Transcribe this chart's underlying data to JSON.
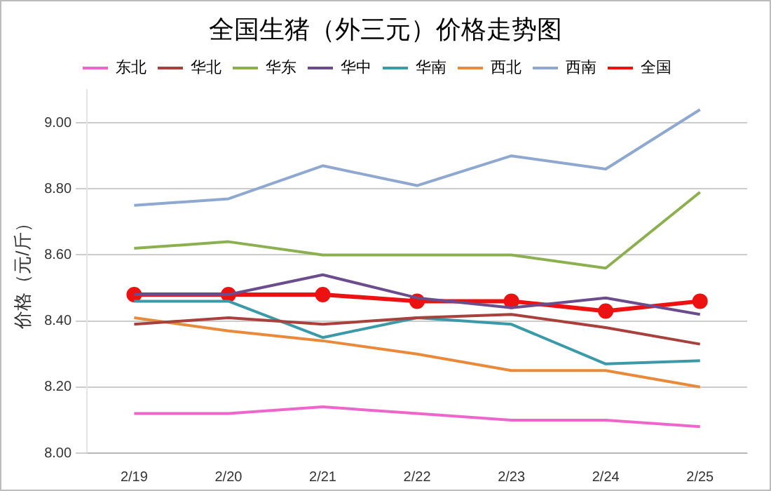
{
  "chart_data": {
    "type": "line",
    "title": "全国生猪（外三元）价格走势图",
    "ylabel": "价格（元/斤）",
    "categories": [
      "2/19",
      "2/20",
      "2/21",
      "2/22",
      "2/23",
      "2/24",
      "2/25"
    ],
    "series": [
      {
        "name": "东北",
        "color": "#ee66cc",
        "values": [
          8.12,
          8.12,
          8.14,
          8.12,
          8.1,
          8.1,
          8.08
        ]
      },
      {
        "name": "华北",
        "color": "#a8403c",
        "values": [
          8.39,
          8.41,
          8.39,
          8.41,
          8.42,
          8.38,
          8.33
        ]
      },
      {
        "name": "华东",
        "color": "#8cb050",
        "values": [
          8.62,
          8.64,
          8.6,
          8.6,
          8.6,
          8.56,
          8.79
        ]
      },
      {
        "name": "华中",
        "color": "#6b4c8c",
        "values": [
          8.48,
          8.48,
          8.54,
          8.47,
          8.44,
          8.47,
          8.42
        ]
      },
      {
        "name": "华南",
        "color": "#3a9aa8",
        "values": [
          8.46,
          8.46,
          8.35,
          8.41,
          8.39,
          8.27,
          8.28
        ]
      },
      {
        "name": "西北",
        "color": "#e88a3a",
        "values": [
          8.41,
          8.37,
          8.34,
          8.3,
          8.25,
          8.25,
          8.2
        ]
      },
      {
        "name": "西南",
        "color": "#8ea8d0",
        "values": [
          8.75,
          8.77,
          8.87,
          8.81,
          8.9,
          8.86,
          9.04
        ]
      },
      {
        "name": "全国",
        "color": "#ee1111",
        "marker": "circle",
        "values": [
          8.48,
          8.48,
          8.48,
          8.46,
          8.46,
          8.43,
          8.46
        ]
      }
    ],
    "marker": "none",
    "line_style": "solid",
    "grid": "y",
    "legend": "top",
    "ylim": [
      8.0,
      9.1
    ],
    "yticks": [
      {
        "value": 8.0,
        "label": "8.00"
      },
      {
        "value": 8.2,
        "label": "8.20"
      },
      {
        "value": 8.4,
        "label": "8.40"
      },
      {
        "value": 8.6,
        "label": "8.60"
      },
      {
        "value": 8.8,
        "label": "8.80"
      },
      {
        "value": 9.0,
        "label": "9.00"
      }
    ]
  }
}
